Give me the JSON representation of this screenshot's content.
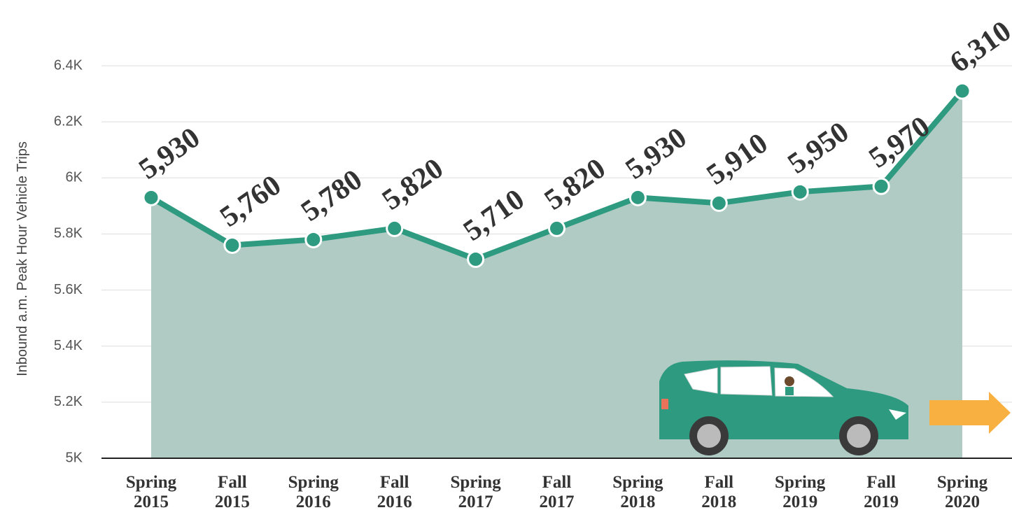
{
  "chart_data": {
    "type": "line",
    "y_label": "Inbound a.m. Peak Hour Vehicle Trips",
    "categories": [
      "Spring 2015",
      "Fall 2015",
      "Spring 2016",
      "Fall 2016",
      "Spring 2017",
      "Fall 2017",
      "Spring 2018",
      "Fall 2018",
      "Spring 2019",
      "Fall 2019",
      "Spring 2020"
    ],
    "values": [
      5930,
      5760,
      5780,
      5820,
      5710,
      5820,
      5930,
      5910,
      5950,
      5970,
      6310
    ],
    "value_labels": [
      "5,930",
      "5,760",
      "5,780",
      "5,820",
      "5,710",
      "5,820",
      "5,930",
      "5,910",
      "5,950",
      "5,970",
      "6,310"
    ],
    "color": "#2e9a80",
    "area_color": "#b0cbc3",
    "ylim": [
      5000,
      6400
    ],
    "yticks": [
      {
        "value": 5000,
        "label": "5K"
      },
      {
        "value": 5200,
        "label": "5.2K"
      },
      {
        "value": 5400,
        "label": "5.4K"
      },
      {
        "value": 5600,
        "label": "5.6K"
      },
      {
        "value": 5800,
        "label": "5.8K"
      },
      {
        "value": 6000,
        "label": "6K"
      },
      {
        "value": 6200,
        "label": "6.2K"
      },
      {
        "value": 6400,
        "label": "6.4K"
      }
    ],
    "grid": true
  }
}
